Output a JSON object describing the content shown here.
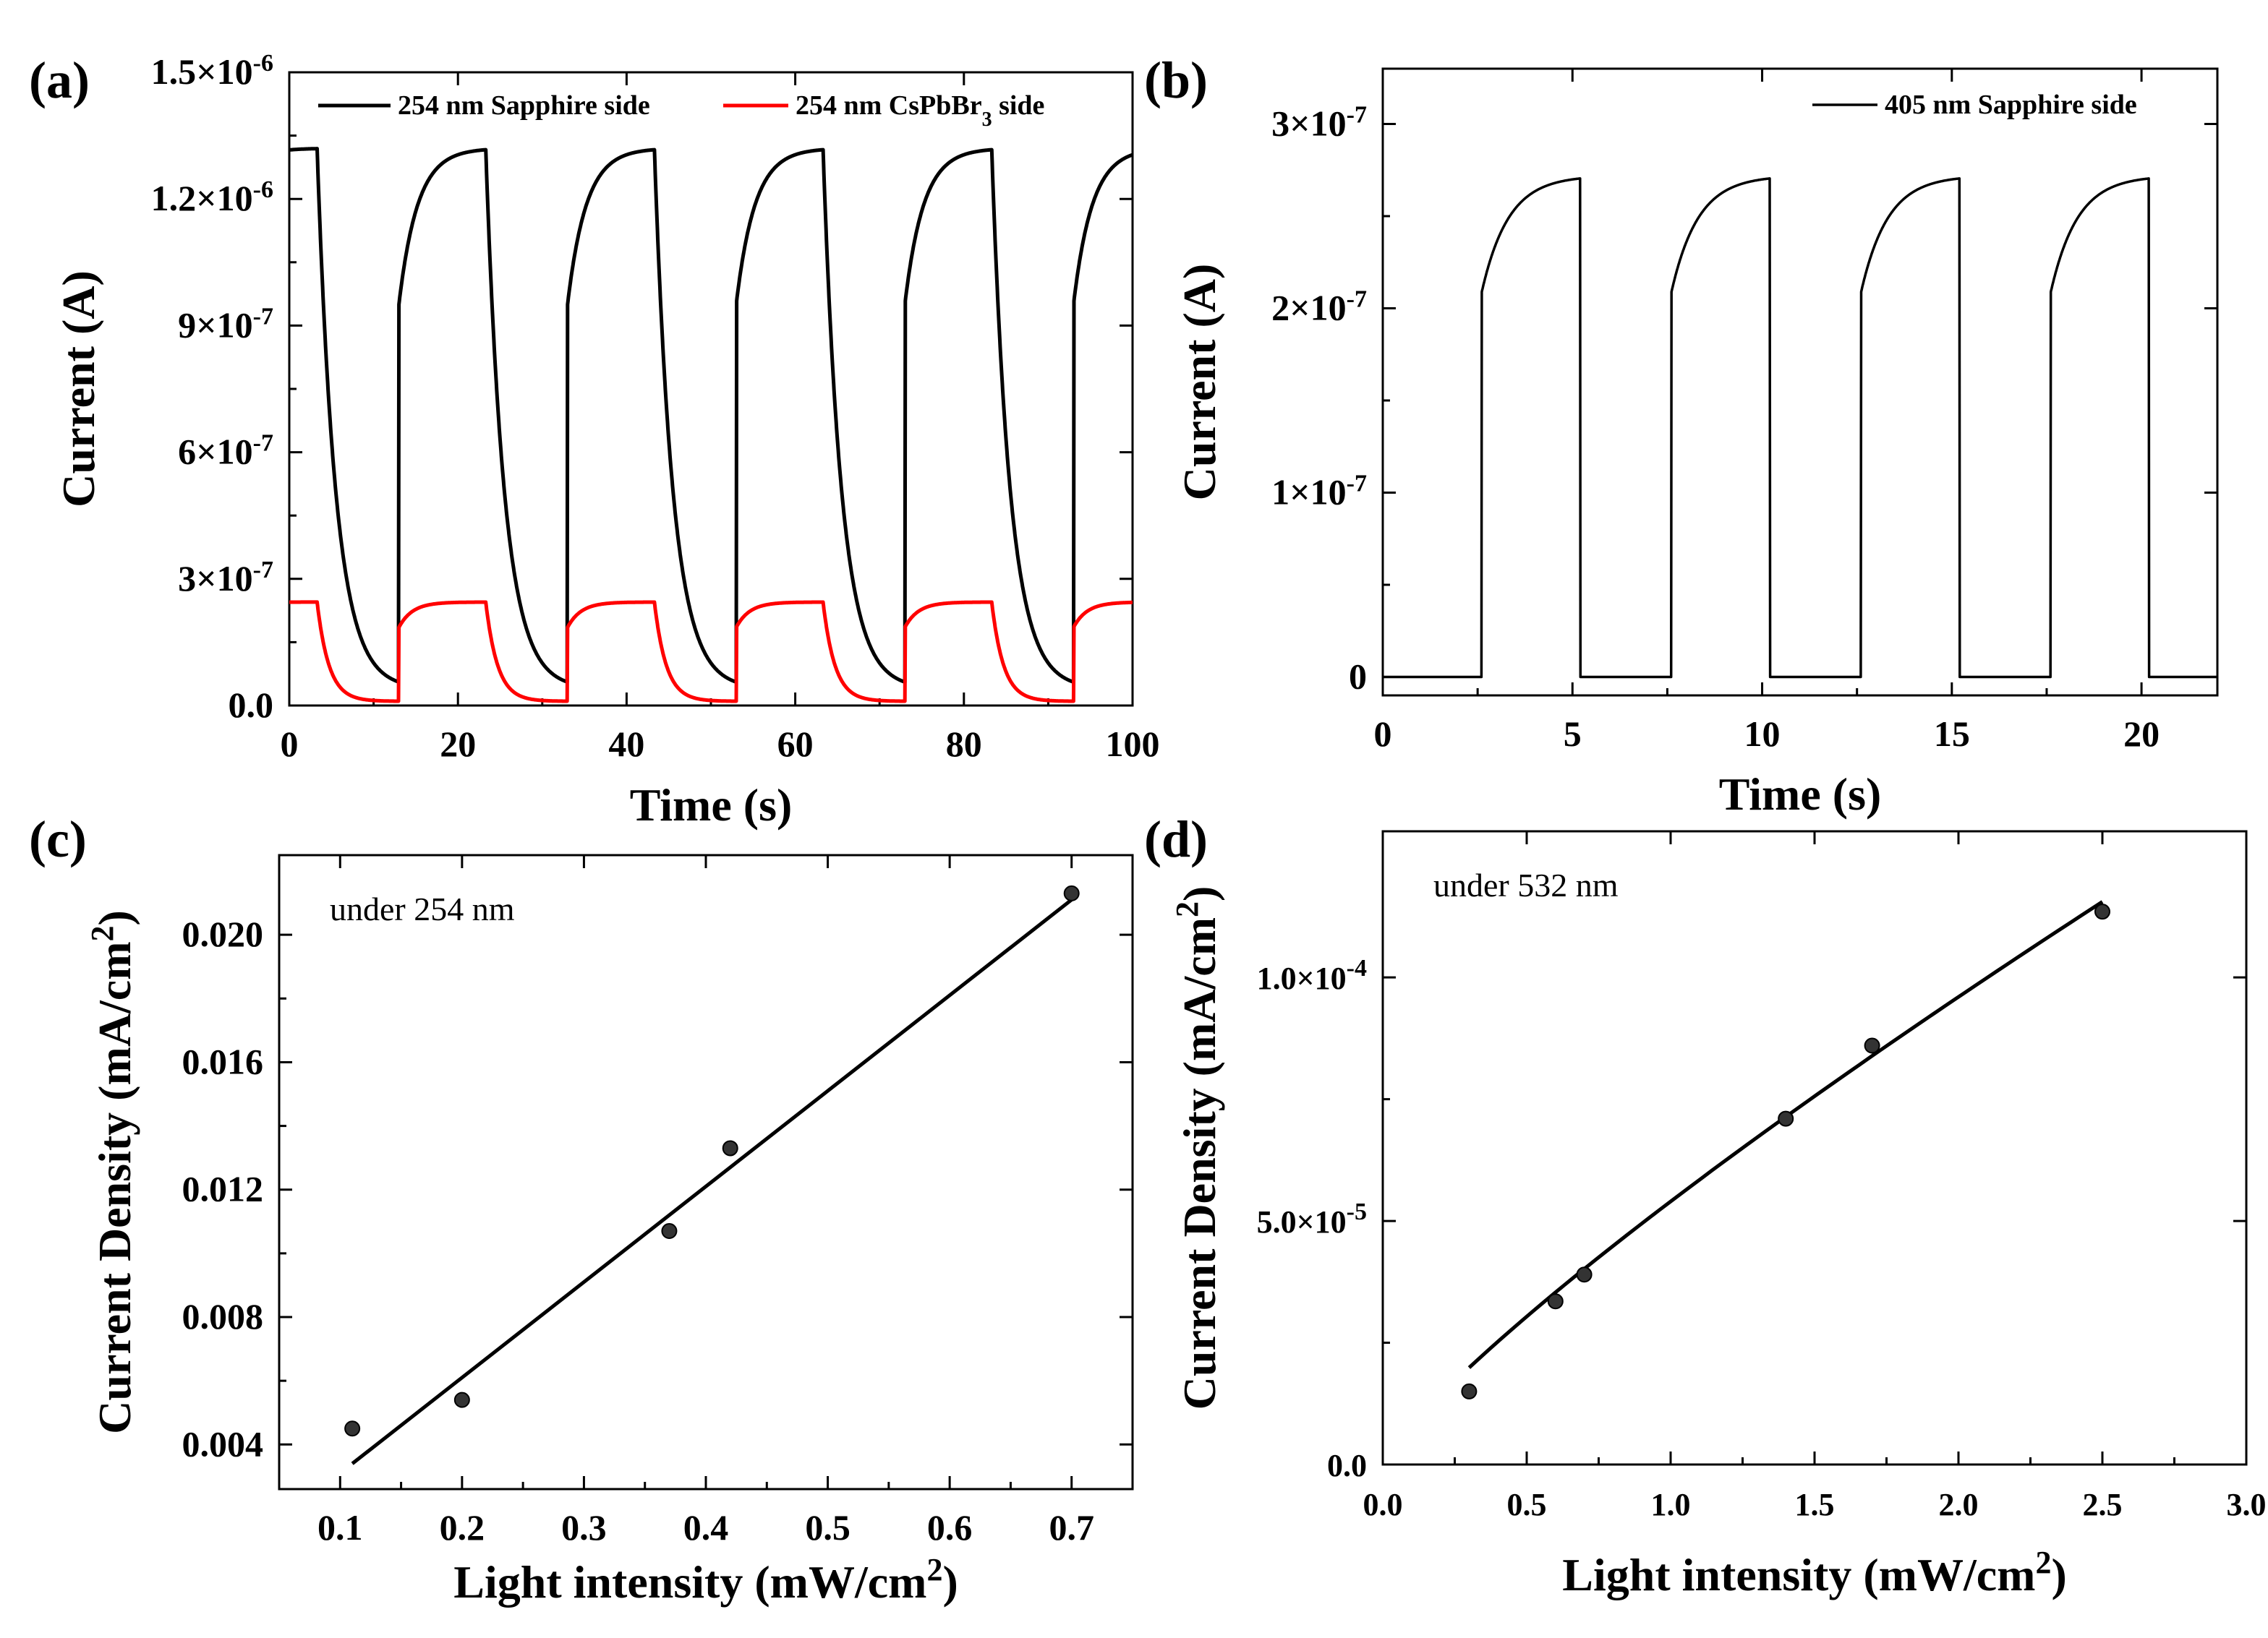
{
  "colors": {
    "black": "#000000",
    "red": "#ff0000",
    "background": "#ffffff"
  },
  "chart_data": [
    {
      "panel": "(a)",
      "type": "line",
      "xlabel": "Time (s)",
      "ylabel": "Current (A)",
      "xlim": [
        0,
        100
      ],
      "ylim": [
        0,
        1.5e-06
      ],
      "xticks": [
        0,
        20,
        40,
        60,
        80,
        100
      ],
      "xtick_labels": [
        "0",
        "20",
        "40",
        "60",
        "80",
        "100"
      ],
      "yticks": [
        0,
        3e-07,
        6e-07,
        9e-07,
        1.2e-06,
        1.5e-06
      ],
      "ytick_labels": [
        {
          "base": "0.0",
          "exp": ""
        },
        {
          "base": "3×10",
          "exp": "-7"
        },
        {
          "base": "6×10",
          "exp": "-7"
        },
        {
          "base": "9×10",
          "exp": "-7"
        },
        {
          "base": "1.2×10",
          "exp": "-6"
        },
        {
          "base": "1.5×10",
          "exp": "-6"
        }
      ],
      "legend_position": "top",
      "series": [
        {
          "name": "254 nm Sapphire side",
          "color": "#000000",
          "on_intervals": [
            [
              -10,
              3.3
            ],
            [
              13,
              23.3
            ],
            [
              33,
              43.3
            ],
            [
              53,
              63.3
            ],
            [
              73,
              83.3
            ],
            [
              93,
              103.3
            ]
          ],
          "on_max": 1.32e-06,
          "jump_level": 9.5e-07,
          "baseline": 6e-08,
          "off_floor": 4e-08,
          "rise_tau": 2.2,
          "decay_tau": 2.2
        },
        {
          "name_parts": [
            "254 nm CsPbBr",
            "3",
            " side"
          ],
          "color": "#ff0000",
          "on_intervals": [
            [
              -10,
              3.3
            ],
            [
              13,
              23.3
            ],
            [
              33,
              43.3
            ],
            [
              53,
              63.3
            ],
            [
              73,
              83.3
            ],
            [
              93,
              103.3
            ]
          ],
          "on_max": 2.45e-07,
          "jump_level": 1.85e-07,
          "baseline": 1.2e-08,
          "off_floor": 1e-08,
          "rise_tau": 1.6,
          "decay_tau": 1.4
        }
      ]
    },
    {
      "panel": "(b)",
      "type": "line",
      "xlabel": "Time (s)",
      "ylabel": "Current (A)",
      "xlim": [
        0,
        22
      ],
      "ylim": [
        -1e-08,
        3.3e-07
      ],
      "xticks": [
        0,
        5,
        10,
        15,
        20
      ],
      "xtick_labels": [
        "0",
        "5",
        "10",
        "15",
        "20"
      ],
      "yticks": [
        0,
        1e-07,
        2e-07,
        3e-07
      ],
      "ytick_labels": [
        {
          "base": "0",
          "exp": ""
        },
        {
          "base": "1×10",
          "exp": "-7"
        },
        {
          "base": "2×10",
          "exp": "-7"
        },
        {
          "base": "3×10",
          "exp": "-7"
        }
      ],
      "legend_position": "top-right",
      "series": [
        {
          "name": "405 nm Sapphire side",
          "color": "#000000",
          "on_intervals": [
            [
              2.6,
              5.2
            ],
            [
              7.6,
              10.2
            ],
            [
              12.6,
              15.2
            ],
            [
              17.6,
              20.2
            ]
          ],
          "on_max": 2.72e-07,
          "jump_level": 2.08e-07,
          "baseline": 0.0,
          "rise_tau": 0.7
        }
      ]
    },
    {
      "panel": "(c)",
      "type": "scatter",
      "xlabel_parts": [
        "Light intensity (mW/cm",
        "2",
        ")"
      ],
      "ylabel_parts": [
        "Current Density (mA/cm",
        "2",
        ")"
      ],
      "annotation": "under 254 nm",
      "xlim": [
        0.05,
        0.75
      ],
      "ylim": [
        0.0026,
        0.0225
      ],
      "xticks": [
        0.1,
        0.2,
        0.3,
        0.4,
        0.5,
        0.6,
        0.7
      ],
      "xtick_labels": [
        "0.1",
        "0.2",
        "0.3",
        "0.4",
        "0.5",
        "0.6",
        "0.7"
      ],
      "yticks": [
        0.004,
        0.008,
        0.012,
        0.016,
        0.02
      ],
      "ytick_labels": [
        "0.004",
        "0.008",
        "0.012",
        "0.016",
        "0.020"
      ],
      "points": [
        {
          "x": 0.11,
          "y": 0.0045
        },
        {
          "x": 0.2,
          "y": 0.0054
        },
        {
          "x": 0.37,
          "y": 0.0107
        },
        {
          "x": 0.42,
          "y": 0.0133
        },
        {
          "x": 0.7,
          "y": 0.0213
        }
      ],
      "fit": {
        "type": "linear",
        "from": [
          0.11,
          0.0034
        ],
        "to": [
          0.7,
          0.0211
        ]
      }
    },
    {
      "panel": "(d)",
      "type": "scatter",
      "xlabel_parts": [
        "Light intensity (mW/cm",
        "2",
        ")"
      ],
      "ylabel_parts": [
        "Current Density (mA/cm",
        "2",
        ")"
      ],
      "annotation": "under 532 nm",
      "xlim": [
        0,
        3.0
      ],
      "ylim": [
        0,
        0.00013
      ],
      "xticks": [
        0,
        0.5,
        1.0,
        1.5,
        2.0,
        2.5,
        3.0
      ],
      "xtick_labels": [
        "0.0",
        "0.5",
        "1.0",
        "1.5",
        "2.0",
        "2.5",
        "3.0"
      ],
      "yticks": [
        0,
        5e-05,
        0.0001
      ],
      "ytick_labels": [
        {
          "base": "0.0",
          "exp": ""
        },
        {
          "base": "5.0×10",
          "exp": "-5"
        },
        {
          "base": "1.0×10",
          "exp": "-4"
        }
      ],
      "points": [
        {
          "x": 0.3,
          "y": 1.5e-05
        },
        {
          "x": 0.6,
          "y": 3.35e-05
        },
        {
          "x": 0.7,
          "y": 3.9e-05
        },
        {
          "x": 1.4,
          "y": 7.1e-05
        },
        {
          "x": 1.7,
          "y": 8.6e-05
        },
        {
          "x": 2.5,
          "y": 0.0001135
        }
      ],
      "fit": {
        "type": "power",
        "x_range": [
          0.3,
          2.5
        ],
        "a": 5.4e-05,
        "b": 0.83
      }
    }
  ]
}
